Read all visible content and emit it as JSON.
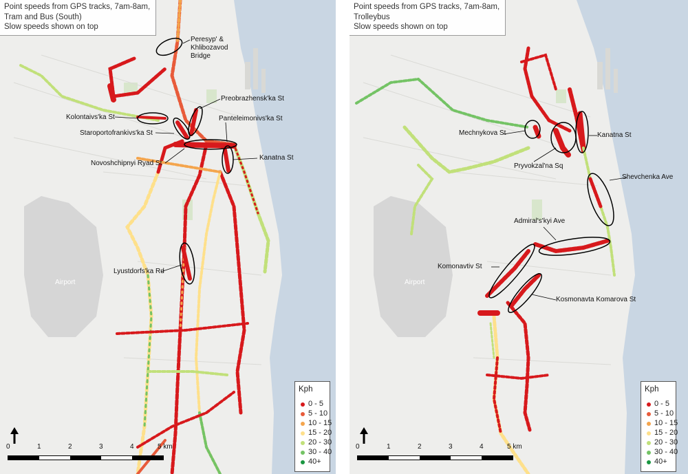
{
  "left_map": {
    "title_lines": [
      "Point speeds from GPS tracks, 7am-8am,",
      "Tram and Bus (South)",
      "Slow speeds shown on top"
    ],
    "place_labels": {
      "peresyp_line1": "Peresyp' &",
      "peresyp_line2": "Khlibozavod",
      "peresyp_line3": "Bridge",
      "preobrazhenska": "Preobrazhensk'ka St",
      "kolontaivska": "Kolontaivs'ka St",
      "panteleimonivska": "Panteleimonivs'ka St",
      "staroportofrankivska": "Staroportofrankivs'ka St",
      "novoshchipnyi": "Novoshchipnyi Ryad St",
      "kanatna": "Kanatna St",
      "lyustdorfska": "Lyustdorfs'ka Rd",
      "airport": "Airport"
    }
  },
  "right_map": {
    "title_lines": [
      "Point speeds from GPS tracks, 7am-8am,",
      "Trolleybus",
      "Slow speeds shown on top"
    ],
    "place_labels": {
      "mechnykova": "Mechnykova St",
      "kanatna": "Kanatna St",
      "pryvokzalna": "Pryvokzal'na Sq",
      "shevchenka": "Shevchenka Ave",
      "admiralskyi": "Admiral's'kyi Ave",
      "komonavtiv": "Komonavtiv St",
      "kosmonavta": "Kosmonavta Komarova St",
      "airport": "Airport"
    }
  },
  "legend": {
    "title": "Kph",
    "items": [
      {
        "label": "0 - 5",
        "color": "#d7191c"
      },
      {
        "label": "5 - 10",
        "color": "#e85b3a"
      },
      {
        "label": "10 - 15",
        "color": "#f4a54d"
      },
      {
        "label": "15 - 20",
        "color": "#fee08b"
      },
      {
        "label": "20 - 30",
        "color": "#c1e07a"
      },
      {
        "label": "30 - 40",
        "color": "#74c365"
      },
      {
        "label": "40+",
        "color": "#1a9641"
      }
    ]
  },
  "scale_bar": {
    "ticks": [
      "0",
      "1",
      "2",
      "3",
      "4",
      "5 km"
    ]
  },
  "colors": {
    "water": "#c9d6e3",
    "land": "#eeeeec",
    "airport": "#d6d6d6",
    "ellipse": "#000000"
  },
  "icons": {
    "north_arrow": "north-arrow-icon"
  }
}
